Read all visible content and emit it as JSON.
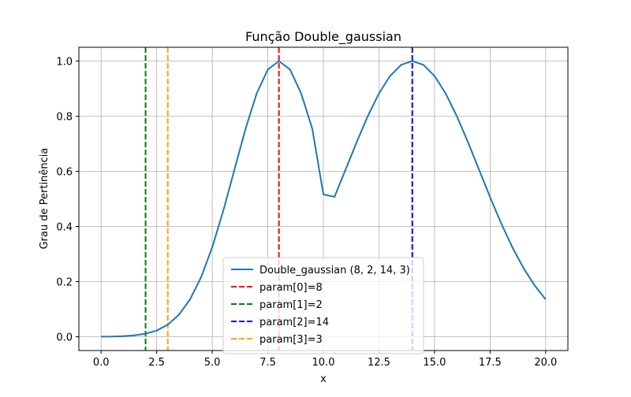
{
  "chart_data": {
    "type": "line",
    "title": "Função Double_gaussian",
    "xlabel": "x",
    "ylabel": "Grau de Pertinência",
    "xlim": [
      -1.0,
      21.0
    ],
    "ylim": [
      -0.05,
      1.05
    ],
    "xticks": [
      0.0,
      2.5,
      5.0,
      7.5,
      10.0,
      12.5,
      15.0,
      17.5,
      20.0
    ],
    "xtick_labels": [
      "0.0",
      "2.5",
      "5.0",
      "7.5",
      "10.0",
      "12.5",
      "15.0",
      "17.5",
      "20.0"
    ],
    "yticks": [
      0.0,
      0.2,
      0.4,
      0.6,
      0.8,
      1.0
    ],
    "ytick_labels": [
      "0.0",
      "0.2",
      "0.4",
      "0.6",
      "0.8",
      "1.0"
    ],
    "grid": true,
    "legend_position": "lower-center",
    "series": [
      {
        "name": "Double_gaussian (8, 2, 14, 3)",
        "color": "#1f77b4",
        "style": "solid",
        "x": [
          0.0,
          0.5,
          1.0,
          1.5,
          2.0,
          2.5,
          3.0,
          3.5,
          4.0,
          4.5,
          5.0,
          5.5,
          6.0,
          6.5,
          7.0,
          7.5,
          8.0,
          8.5,
          9.0,
          9.5,
          10.0,
          10.5,
          11.0,
          11.5,
          12.0,
          12.5,
          13.0,
          13.5,
          14.0,
          14.5,
          15.0,
          15.5,
          16.0,
          16.5,
          17.0,
          17.5,
          18.0,
          18.5,
          19.0,
          19.5,
          20.0
        ],
        "y": [
          0.0003,
          0.0008,
          0.0022,
          0.0051,
          0.0111,
          0.0223,
          0.0439,
          0.0796,
          0.1353,
          0.2163,
          0.3247,
          0.4578,
          0.6065,
          0.7548,
          0.8825,
          0.9692,
          1.0,
          0.9692,
          0.8825,
          0.7548,
          0.5164,
          0.5073,
          0.6065,
          0.7066,
          0.8007,
          0.8825,
          0.946,
          0.9862,
          1.0,
          0.9862,
          0.946,
          0.8825,
          0.8007,
          0.7066,
          0.6065,
          0.5063,
          0.4111,
          0.3247,
          0.2494,
          0.1863,
          0.1353
        ]
      }
    ],
    "vlines": [
      {
        "name": "param[0]=8",
        "x": 8,
        "color": "#ff0000"
      },
      {
        "name": "param[1]=2",
        "x": 2,
        "color": "#008000"
      },
      {
        "name": "param[2]=14",
        "x": 14,
        "color": "#0000ff"
      },
      {
        "name": "param[3]=3",
        "x": 3,
        "color": "#ffa500"
      }
    ]
  }
}
